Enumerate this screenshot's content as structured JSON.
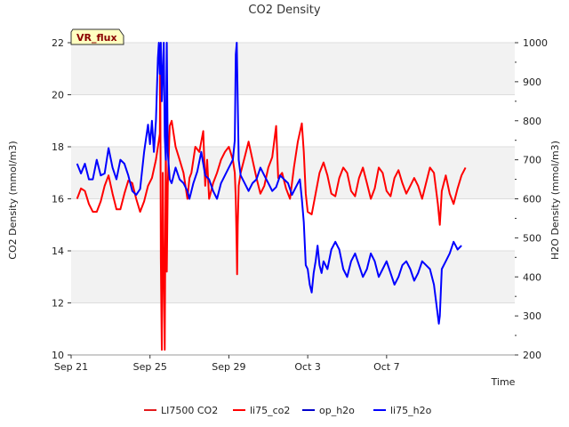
{
  "chart_data": {
    "type": "line",
    "title": "CO2 Density",
    "xlabel": "Time",
    "ylabel_left": "CO2 Density (mmol/m3)",
    "ylabel_right": "H2O Density (mmol/m3)",
    "badge": "VR_flux",
    "xlim": [
      0,
      22.5
    ],
    "ylim_left": [
      10,
      22
    ],
    "ylim_right": [
      200,
      1000
    ],
    "x_ticks": [
      {
        "value": 0,
        "label": "Sep 21"
      },
      {
        "value": 4,
        "label": "Sep 25"
      },
      {
        "value": 8,
        "label": "Sep 29"
      },
      {
        "value": 12,
        "label": "Oct 3"
      },
      {
        "value": 16,
        "label": "Oct 7"
      }
    ],
    "y_ticks_left": [
      10,
      12,
      14,
      16,
      18,
      20,
      22
    ],
    "y_ticks_right": [
      200,
      300,
      400,
      500,
      600,
      700,
      800,
      900,
      1000
    ],
    "bands_left": [
      [
        12,
        14
      ],
      [
        16,
        18
      ],
      [
        20,
        22
      ]
    ],
    "legend": [
      {
        "label": "LI7500 CO2",
        "color": "#e31a1c"
      },
      {
        "label": "li75_co2",
        "color": "#ff0000"
      },
      {
        "label": "op_h2o",
        "color": "#0000cc"
      },
      {
        "label": "li75_h2o",
        "color": "#0000ff"
      }
    ],
    "series": [
      {
        "name": "li75_co2",
        "axis": "left",
        "color": "#ff0000",
        "points": [
          [
            0.3,
            16.0
          ],
          [
            0.5,
            16.4
          ],
          [
            0.7,
            16.3
          ],
          [
            0.9,
            15.8
          ],
          [
            1.1,
            15.5
          ],
          [
            1.3,
            15.5
          ],
          [
            1.5,
            15.9
          ],
          [
            1.7,
            16.5
          ],
          [
            1.9,
            16.9
          ],
          [
            2.1,
            16.2
          ],
          [
            2.3,
            15.6
          ],
          [
            2.5,
            15.6
          ],
          [
            2.7,
            16.2
          ],
          [
            2.9,
            16.7
          ],
          [
            3.1,
            16.6
          ],
          [
            3.3,
            16.0
          ],
          [
            3.5,
            15.5
          ],
          [
            3.7,
            15.9
          ],
          [
            3.9,
            16.5
          ],
          [
            4.1,
            16.8
          ],
          [
            4.3,
            17.5
          ],
          [
            4.5,
            18.5
          ],
          [
            4.52,
            21.8
          ],
          [
            4.55,
            13.7
          ],
          [
            4.6,
            10.2
          ],
          [
            4.65,
            17.0
          ],
          [
            4.7,
            13.0
          ],
          [
            4.75,
            10.2
          ],
          [
            4.8,
            18.0
          ],
          [
            4.85,
            13.2
          ],
          [
            4.9,
            16.5
          ],
          [
            5.0,
            18.8
          ],
          [
            5.1,
            19.0
          ],
          [
            5.3,
            18.0
          ],
          [
            5.5,
            17.5
          ],
          [
            5.7,
            17.0
          ],
          [
            5.9,
            16.0
          ],
          [
            6.0,
            16.8
          ],
          [
            6.1,
            17.0
          ],
          [
            6.3,
            18.0
          ],
          [
            6.5,
            17.8
          ],
          [
            6.7,
            18.6
          ],
          [
            6.8,
            16.5
          ],
          [
            6.9,
            17.5
          ],
          [
            7.0,
            16.0
          ],
          [
            7.2,
            16.6
          ],
          [
            7.4,
            17.0
          ],
          [
            7.6,
            17.5
          ],
          [
            7.8,
            17.8
          ],
          [
            8.0,
            18.0
          ],
          [
            8.2,
            17.5
          ],
          [
            8.3,
            17.0
          ],
          [
            8.35,
            16.0
          ],
          [
            8.4,
            14.0
          ],
          [
            8.42,
            13.1
          ],
          [
            8.45,
            15.0
          ],
          [
            8.5,
            16.5
          ],
          [
            8.6,
            17.0
          ],
          [
            8.8,
            17.6
          ],
          [
            9.0,
            18.2
          ],
          [
            9.2,
            17.5
          ],
          [
            9.4,
            16.8
          ],
          [
            9.6,
            16.2
          ],
          [
            9.8,
            16.5
          ],
          [
            10.0,
            17.2
          ],
          [
            10.2,
            17.6
          ],
          [
            10.4,
            18.8
          ],
          [
            10.5,
            16.8
          ],
          [
            10.7,
            17.0
          ],
          [
            10.9,
            16.4
          ],
          [
            11.1,
            16.0
          ],
          [
            11.3,
            17.2
          ],
          [
            11.5,
            18.2
          ],
          [
            11.7,
            18.9
          ],
          [
            11.8,
            17.8
          ],
          [
            11.9,
            16.2
          ],
          [
            12.0,
            15.5
          ],
          [
            12.2,
            15.4
          ],
          [
            12.4,
            16.2
          ],
          [
            12.6,
            17.0
          ],
          [
            12.8,
            17.4
          ],
          [
            13.0,
            16.9
          ],
          [
            13.2,
            16.2
          ],
          [
            13.4,
            16.1
          ],
          [
            13.6,
            16.8
          ],
          [
            13.8,
            17.2
          ],
          [
            14.0,
            17.0
          ],
          [
            14.2,
            16.3
          ],
          [
            14.4,
            16.1
          ],
          [
            14.6,
            16.8
          ],
          [
            14.8,
            17.2
          ],
          [
            15.0,
            16.6
          ],
          [
            15.2,
            16.0
          ],
          [
            15.4,
            16.4
          ],
          [
            15.6,
            17.2
          ],
          [
            15.8,
            17.0
          ],
          [
            16.0,
            16.3
          ],
          [
            16.2,
            16.1
          ],
          [
            16.4,
            16.8
          ],
          [
            16.6,
            17.1
          ],
          [
            16.8,
            16.6
          ],
          [
            17.0,
            16.2
          ],
          [
            17.2,
            16.5
          ],
          [
            17.4,
            16.8
          ],
          [
            17.6,
            16.5
          ],
          [
            17.8,
            16.0
          ],
          [
            18.0,
            16.6
          ],
          [
            18.2,
            17.2
          ],
          [
            18.4,
            17.0
          ],
          [
            18.6,
            15.8
          ],
          [
            18.7,
            15.0
          ],
          [
            18.8,
            16.3
          ],
          [
            19.0,
            16.9
          ],
          [
            19.2,
            16.2
          ],
          [
            19.4,
            15.8
          ],
          [
            19.6,
            16.4
          ],
          [
            19.8,
            16.9
          ],
          [
            20.0,
            17.2
          ]
        ]
      },
      {
        "name": "li75_h2o",
        "axis": "right",
        "color": "#0000ff",
        "points": [
          [
            0.3,
            690
          ],
          [
            0.5,
            665
          ],
          [
            0.7,
            690
          ],
          [
            0.9,
            650
          ],
          [
            1.1,
            650
          ],
          [
            1.3,
            700
          ],
          [
            1.5,
            660
          ],
          [
            1.7,
            665
          ],
          [
            1.9,
            730
          ],
          [
            2.1,
            680
          ],
          [
            2.3,
            650
          ],
          [
            2.5,
            700
          ],
          [
            2.7,
            690
          ],
          [
            2.9,
            660
          ],
          [
            3.1,
            620
          ],
          [
            3.3,
            610
          ],
          [
            3.5,
            625
          ],
          [
            3.7,
            720
          ],
          [
            3.9,
            790
          ],
          [
            4.0,
            740
          ],
          [
            4.1,
            800
          ],
          [
            4.2,
            720
          ],
          [
            4.3,
            800
          ],
          [
            4.4,
            960
          ],
          [
            4.45,
            1000
          ],
          [
            4.5,
            920
          ],
          [
            4.55,
            1000
          ],
          [
            4.6,
            850
          ],
          [
            4.7,
            1000
          ],
          [
            4.75,
            760
          ],
          [
            4.8,
            700
          ],
          [
            4.85,
            1000
          ],
          [
            4.9,
            720
          ],
          [
            5.0,
            650
          ],
          [
            5.1,
            640
          ],
          [
            5.3,
            680
          ],
          [
            5.5,
            650
          ],
          [
            5.7,
            640
          ],
          [
            5.9,
            620
          ],
          [
            6.0,
            600
          ],
          [
            6.2,
            640
          ],
          [
            6.4,
            670
          ],
          [
            6.6,
            720
          ],
          [
            6.8,
            660
          ],
          [
            7.0,
            650
          ],
          [
            7.2,
            620
          ],
          [
            7.4,
            600
          ],
          [
            7.6,
            640
          ],
          [
            7.8,
            660
          ],
          [
            8.0,
            680
          ],
          [
            8.2,
            700
          ],
          [
            8.3,
            750
          ],
          [
            8.35,
            970
          ],
          [
            8.4,
            1000
          ],
          [
            8.45,
            850
          ],
          [
            8.5,
            700
          ],
          [
            8.6,
            660
          ],
          [
            8.8,
            640
          ],
          [
            9.0,
            620
          ],
          [
            9.2,
            640
          ],
          [
            9.4,
            650
          ],
          [
            9.6,
            680
          ],
          [
            9.8,
            660
          ],
          [
            10.0,
            640
          ],
          [
            10.2,
            620
          ],
          [
            10.4,
            630
          ],
          [
            10.6,
            660
          ],
          [
            10.8,
            650
          ],
          [
            11.0,
            640
          ],
          [
            11.2,
            610
          ],
          [
            11.4,
            630
          ],
          [
            11.6,
            650
          ],
          [
            11.7,
            600
          ],
          [
            11.8,
            540
          ],
          [
            11.9,
            430
          ],
          [
            12.0,
            420
          ],
          [
            12.1,
            380
          ],
          [
            12.2,
            360
          ],
          [
            12.3,
            410
          ],
          [
            12.4,
            440
          ],
          [
            12.5,
            480
          ],
          [
            12.6,
            430
          ],
          [
            12.7,
            410
          ],
          [
            12.8,
            440
          ],
          [
            13.0,
            420
          ],
          [
            13.2,
            470
          ],
          [
            13.4,
            490
          ],
          [
            13.6,
            470
          ],
          [
            13.8,
            420
          ],
          [
            14.0,
            400
          ],
          [
            14.2,
            440
          ],
          [
            14.4,
            460
          ],
          [
            14.6,
            430
          ],
          [
            14.8,
            400
          ],
          [
            15.0,
            420
          ],
          [
            15.2,
            460
          ],
          [
            15.4,
            440
          ],
          [
            15.6,
            400
          ],
          [
            15.8,
            420
          ],
          [
            16.0,
            440
          ],
          [
            16.2,
            410
          ],
          [
            16.4,
            380
          ],
          [
            16.6,
            400
          ],
          [
            16.8,
            430
          ],
          [
            17.0,
            440
          ],
          [
            17.2,
            420
          ],
          [
            17.4,
            390
          ],
          [
            17.6,
            410
          ],
          [
            17.8,
            440
          ],
          [
            18.0,
            430
          ],
          [
            18.2,
            420
          ],
          [
            18.4,
            380
          ],
          [
            18.6,
            300
          ],
          [
            18.65,
            280
          ],
          [
            18.7,
            300
          ],
          [
            18.8,
            420
          ],
          [
            19.0,
            440
          ],
          [
            19.2,
            460
          ],
          [
            19.4,
            490
          ],
          [
            19.5,
            480
          ],
          [
            19.6,
            470
          ],
          [
            19.8,
            480
          ]
        ]
      }
    ]
  }
}
